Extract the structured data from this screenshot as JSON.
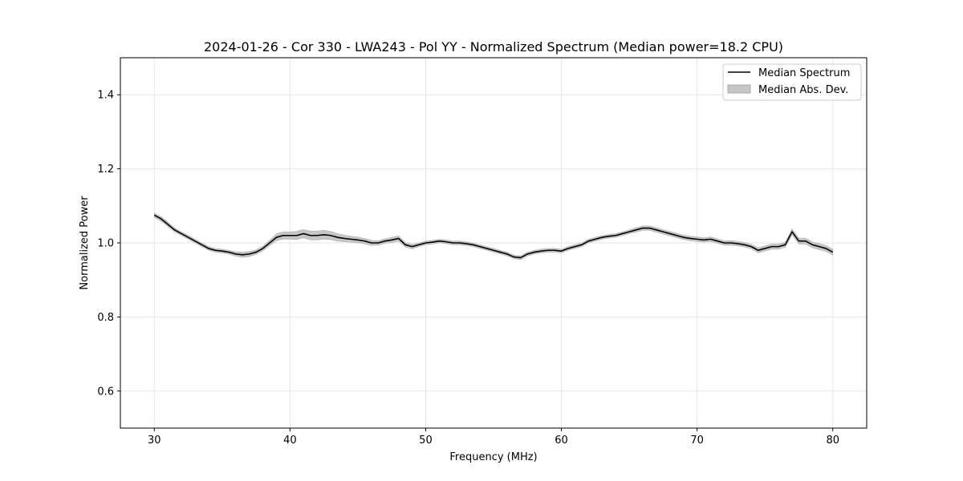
{
  "chart_data": {
    "type": "line",
    "title": "2024-01-26 - Cor 330 - LWA243 - Pol YY - Normalized Spectrum (Median power=18.2 CPU)",
    "xlabel": "Frequency (MHz)",
    "ylabel": "Normalized Power",
    "xlim": [
      27.5,
      82.5
    ],
    "ylim": [
      0.5,
      1.5
    ],
    "x_ticks": [
      30,
      40,
      50,
      60,
      70,
      80
    ],
    "x_tick_labels": [
      "30",
      "40",
      "50",
      "60",
      "70",
      "80"
    ],
    "y_ticks": [
      0.6,
      0.8,
      1.0,
      1.2,
      1.4
    ],
    "y_tick_labels": [
      "0.6",
      "0.8",
      "1.0",
      "1.2",
      "1.4"
    ],
    "grid": true,
    "legend": {
      "location": "top-right",
      "entries": [
        "Median Spectrum",
        "Median Abs. Dev."
      ]
    },
    "series": [
      {
        "name": "Median Spectrum",
        "color": "#000000",
        "x": [
          30,
          30.5,
          31,
          31.5,
          32,
          32.5,
          33,
          33.5,
          34,
          34.5,
          35,
          35.5,
          36,
          36.5,
          37,
          37.5,
          38,
          38.5,
          39,
          39.5,
          40,
          40.5,
          41,
          41.5,
          42,
          42.5,
          43,
          43.5,
          44,
          44.5,
          45,
          45.5,
          46,
          46.5,
          47,
          47.5,
          48,
          48.5,
          49,
          49.5,
          50,
          50.5,
          51,
          51.5,
          52,
          52.5,
          53,
          53.5,
          54,
          54.5,
          55,
          55.5,
          56,
          56.5,
          57,
          57.5,
          58,
          58.5,
          59,
          59.5,
          60,
          60.5,
          61,
          61.5,
          62,
          62.5,
          63,
          63.5,
          64,
          64.5,
          65,
          65.5,
          66,
          66.5,
          67,
          67.5,
          68,
          68.5,
          69,
          69.5,
          70,
          70.5,
          71,
          71.5,
          72,
          72.5,
          73,
          73.5,
          74,
          74.5,
          75,
          75.5,
          76,
          76.5,
          77,
          77.5,
          78,
          78.5,
          79,
          79.5,
          80
        ],
        "y": [
          1.075,
          1.065,
          1.05,
          1.035,
          1.025,
          1.015,
          1.005,
          0.995,
          0.985,
          0.98,
          0.978,
          0.975,
          0.97,
          0.968,
          0.97,
          0.975,
          0.985,
          1.0,
          1.015,
          1.02,
          1.02,
          1.02,
          1.025,
          1.02,
          1.02,
          1.022,
          1.02,
          1.015,
          1.012,
          1.01,
          1.008,
          1.005,
          1.0,
          1.0,
          1.005,
          1.008,
          1.012,
          0.995,
          0.99,
          0.995,
          1.0,
          1.002,
          1.005,
          1.003,
          1.0,
          1.0,
          0.998,
          0.995,
          0.99,
          0.985,
          0.98,
          0.975,
          0.97,
          0.962,
          0.96,
          0.97,
          0.975,
          0.978,
          0.98,
          0.98,
          0.978,
          0.985,
          0.99,
          0.995,
          1.005,
          1.01,
          1.015,
          1.018,
          1.02,
          1.025,
          1.03,
          1.035,
          1.04,
          1.04,
          1.035,
          1.03,
          1.025,
          1.02,
          1.015,
          1.012,
          1.01,
          1.008,
          1.01,
          1.005,
          1.0,
          1.0,
          0.998,
          0.995,
          0.99,
          0.98,
          0.985,
          0.99,
          0.99,
          0.995,
          1.03,
          1.005,
          1.005,
          0.995,
          0.99,
          0.985,
          0.975
        ]
      }
    ],
    "band": {
      "name": "Median Abs. Dev.",
      "color": "#c6c6c6",
      "half_width": [
        0.006,
        0.006,
        0.006,
        0.005,
        0.005,
        0.005,
        0.005,
        0.005,
        0.005,
        0.005,
        0.005,
        0.005,
        0.006,
        0.007,
        0.007,
        0.006,
        0.006,
        0.007,
        0.009,
        0.01,
        0.01,
        0.011,
        0.011,
        0.012,
        0.012,
        0.012,
        0.011,
        0.01,
        0.009,
        0.008,
        0.008,
        0.007,
        0.007,
        0.006,
        0.006,
        0.007,
        0.007,
        0.006,
        0.006,
        0.005,
        0.005,
        0.005,
        0.005,
        0.005,
        0.005,
        0.005,
        0.005,
        0.005,
        0.005,
        0.005,
        0.005,
        0.005,
        0.005,
        0.005,
        0.005,
        0.005,
        0.005,
        0.005,
        0.005,
        0.005,
        0.005,
        0.005,
        0.005,
        0.005,
        0.005,
        0.005,
        0.005,
        0.005,
        0.005,
        0.005,
        0.005,
        0.006,
        0.006,
        0.006,
        0.006,
        0.006,
        0.006,
        0.006,
        0.006,
        0.006,
        0.006,
        0.006,
        0.006,
        0.006,
        0.006,
        0.006,
        0.006,
        0.006,
        0.006,
        0.007,
        0.007,
        0.007,
        0.007,
        0.007,
        0.008,
        0.008,
        0.008,
        0.008,
        0.008,
        0.008,
        0.008
      ]
    }
  }
}
